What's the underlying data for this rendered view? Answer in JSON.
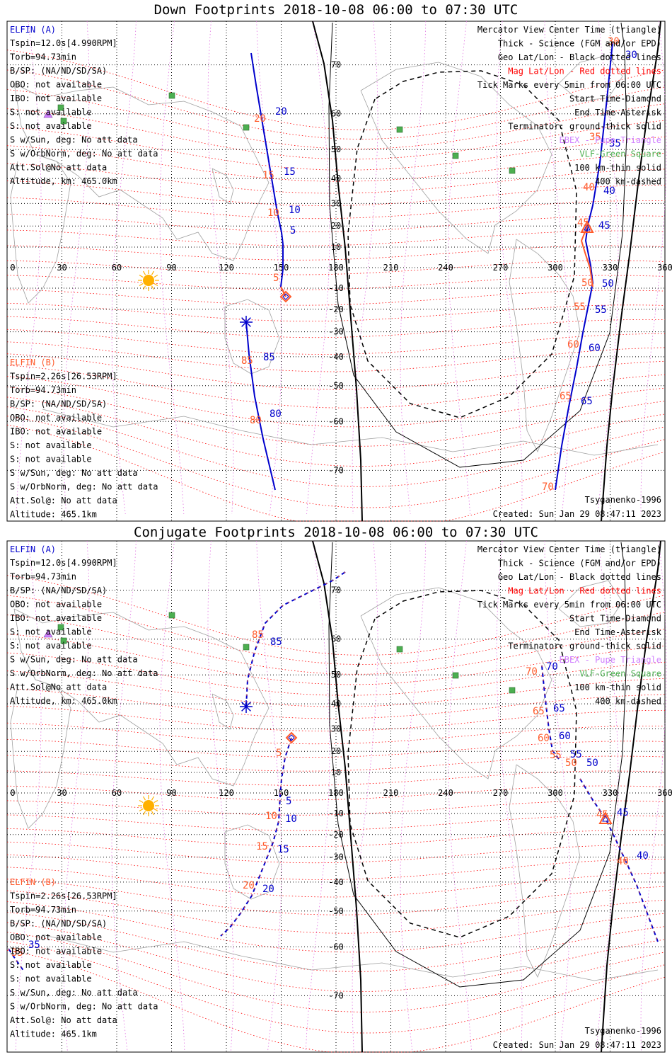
{
  "colors": {
    "elfin_a": "#0000cc",
    "elfin_b": "#ff5a2a",
    "mag_grid": "#ff0000",
    "geo_grid": "#000000",
    "ebex": "#d080ff",
    "vlf": "#4caf50",
    "sun": "#ffb000"
  },
  "axes": {
    "lon_ticks": [
      "0",
      "30",
      "60",
      "90",
      "120",
      "150",
      "180",
      "210",
      "240",
      "270",
      "300",
      "330",
      "360"
    ],
    "lat_ticks": [
      "70",
      "60",
      "50",
      "40",
      "30",
      "20",
      "10",
      "0",
      "-10",
      "-20",
      "-30",
      "-40",
      "-50",
      "-60",
      "-70"
    ]
  },
  "legend": {
    "view": "Mercator View Center Time (triangle)",
    "thick": "Thick - Science (FGM and/or EPD)",
    "geo": "Geo Lat/Lon - Black dotted lines",
    "mag": "Mag Lat/Lon - Red dotted lines",
    "ticks": "Tick Marks every 5min from 06:00 UTC",
    "start": "Start Time-Diamond",
    "end": "End Time-Asterisk",
    "terminator": "Terminator: ground-thick solid",
    "ebex": "EBEX - Pupe Triangle",
    "vlf": "VLF-Green Square",
    "km100": "100 km-thin solid",
    "km400": "400 km-dashed",
    "model": "Tsyganenko-1996",
    "created": "Created: Sun Jan 29 08:47:11 2023"
  },
  "sc_a": {
    "name": "ELFIN (A)",
    "lines": [
      "Tspin=12.0s[4.990RPM]",
      "Torb=94.73min",
      "B/SP: (NA/ND/SD/SA)",
      "OBO: not available",
      "IBO: not available",
      "S: not available",
      "S: not available",
      "S w/Sun, deg: No att data",
      "S w/OrbNorm, deg: No att data",
      "Att.Sol@No att data",
      "Altitude, km: 465.0km"
    ]
  },
  "sc_b": {
    "name": "ELFIN (B)",
    "lines": [
      "Tspin=2.26s[26.53RPM]",
      "Torb=94.73min",
      "B/SP: (NA/ND/SD/SA)",
      "OBO: not available",
      "IBO: not available",
      "S: not available",
      "S: not available",
      "S w/Sun, deg: No att data",
      "S w/OrbNorm, deg: No att data",
      "Att.Sol@: No att data",
      "Altitude: 465.1km"
    ]
  },
  "panels": [
    {
      "id": "down",
      "title": "Down Footprints 2018-10-08 06:00 to 07:30 UTC",
      "track_style": "solid",
      "tracks": [
        {
          "color_key": "elfin_a",
          "points": [
            [
              355,
              75
            ],
            [
              362,
              120
            ],
            [
              372,
              180
            ],
            [
              382,
              240
            ],
            [
              392,
              300
            ],
            [
              398,
              328
            ],
            [
              400,
              345
            ],
            [
              400,
              380
            ],
            [
              397,
              405
            ],
            [
              404,
              419
            ]
          ]
        },
        {
          "color_key": "elfin_b",
          "points": [
            [
              397,
              405
            ],
            [
              404,
              419
            ]
          ]
        },
        {
          "color_key": "elfin_a",
          "points": [
            [
              348,
              455
            ],
            [
              352,
              500
            ],
            [
              360,
              560
            ],
            [
              372,
              620
            ],
            [
              389,
              692
            ]
          ]
        },
        {
          "color_key": "elfin_a",
          "points": [
            [
              866,
              60
            ],
            [
              858,
              140
            ],
            [
              848,
              230
            ],
            [
              838,
              290
            ],
            [
              831,
              318
            ],
            [
              828,
              340
            ],
            [
              835,
              375
            ],
            [
              838,
              400
            ],
            [
              832,
              430
            ],
            [
              824,
              470
            ],
            [
              815,
              520
            ],
            [
              804,
              575
            ],
            [
              794,
              630
            ],
            [
              785,
              692
            ]
          ]
        },
        {
          "color_key": "elfin_b",
          "points": [
            [
              831,
              318
            ],
            [
              822,
              340
            ],
            [
              828,
              360
            ],
            [
              834,
              378
            ],
            [
              838,
              405
            ]
          ]
        }
      ],
      "start_marker": [
        404,
        419
      ],
      "end_marker": [
        348,
        455
      ],
      "center_marker": [
        830,
        322
      ],
      "tick_labels": [
        {
          "text": "20",
          "color_key": "elfin_a",
          "at": [
            389,
            162
          ]
        },
        {
          "text": "20",
          "color_key": "elfin_b",
          "at": [
            359,
            172
          ]
        },
        {
          "text": "15",
          "color_key": "elfin_a",
          "at": [
            401,
            247
          ]
        },
        {
          "text": "15",
          "color_key": "elfin_b",
          "at": [
            371,
            252
          ]
        },
        {
          "text": "10",
          "color_key": "elfin_a",
          "at": [
            408,
            301
          ]
        },
        {
          "text": "10",
          "color_key": "elfin_b",
          "at": [
            378,
            305
          ]
        },
        {
          "text": "5",
          "color_key": "elfin_a",
          "at": [
            410,
            330
          ]
        },
        {
          "text": "5",
          "color_key": "elfin_b",
          "at": [
            386,
            397
          ]
        },
        {
          "text": "85",
          "color_key": "elfin_a",
          "at": [
            372,
            509
          ]
        },
        {
          "text": "85",
          "color_key": "elfin_b",
          "at": [
            341,
            514
          ]
        },
        {
          "text": "80",
          "color_key": "elfin_a",
          "at": [
            381,
            589
          ]
        },
        {
          "text": "80",
          "color_key": "elfin_b",
          "at": [
            353,
            598
          ]
        },
        {
          "text": "30",
          "color_key": "elfin_a",
          "at": [
            884,
            82
          ]
        },
        {
          "text": "30",
          "color_key": "elfin_b",
          "at": [
            859,
            63
          ]
        },
        {
          "text": "35",
          "color_key": "elfin_a",
          "at": [
            861,
            207
          ]
        },
        {
          "text": "35",
          "color_key": "elfin_b",
          "at": [
            833,
            198
          ]
        },
        {
          "text": "40",
          "color_key": "elfin_a",
          "at": [
            853,
            274
          ]
        },
        {
          "text": "40",
          "color_key": "elfin_b",
          "at": [
            824,
            269
          ]
        },
        {
          "text": "45",
          "color_key": "elfin_a",
          "at": [
            846,
            323
          ]
        },
        {
          "text": "45",
          "color_key": "elfin_b",
          "at": [
            816,
            319
          ]
        },
        {
          "text": "50",
          "color_key": "elfin_a",
          "at": [
            851,
            405
          ]
        },
        {
          "text": "50",
          "color_key": "elfin_b",
          "at": [
            822,
            404
          ]
        },
        {
          "text": "55",
          "color_key": "elfin_a",
          "at": [
            841,
            442
          ]
        },
        {
          "text": "55",
          "color_key": "elfin_b",
          "at": [
            811,
            438
          ]
        },
        {
          "text": "60",
          "color_key": "elfin_a",
          "at": [
            832,
            496
          ]
        },
        {
          "text": "60",
          "color_key": "elfin_b",
          "at": [
            802,
            491
          ]
        },
        {
          "text": "65",
          "color_key": "elfin_a",
          "at": [
            821,
            571
          ]
        },
        {
          "text": "65",
          "color_key": "elfin_b",
          "at": [
            791,
            564
          ]
        },
        {
          "text": "70",
          "color_key": "elfin_b",
          "at": [
            766,
            692
          ]
        }
      ]
    },
    {
      "id": "conjugate",
      "title": "Conjugate Footprints 2018-10-08 06:00 to 07:30 UTC",
      "track_style": "dashed",
      "tracks": [
        {
          "color_key": "elfin_a",
          "points": [
            [
              488,
              808
            ],
            [
              470,
              820
            ],
            [
              430,
              840
            ],
            [
              400,
              855
            ],
            [
              375,
              880
            ],
            [
              360,
              920
            ],
            [
              350,
              960
            ],
            [
              348,
              998
            ]
          ]
        },
        {
          "color_key": "elfin_a",
          "points": [
            [
              412,
              1042
            ],
            [
              403,
              1070
            ],
            [
              398,
              1100
            ],
            [
              396,
              1125
            ],
            [
              394,
              1160
            ],
            [
              386,
              1190
            ],
            [
              376,
              1215
            ],
            [
              366,
              1240
            ],
            [
              356,
              1265
            ],
            [
              340,
              1290
            ],
            [
              325,
              1310
            ],
            [
              312,
              1322
            ]
          ]
        },
        {
          "color_key": "elfin_a",
          "points": [
            [
              766,
              940
            ],
            [
              770,
              980
            ],
            [
              776,
              1030
            ],
            [
              781,
              1060
            ],
            [
              790,
              1072
            ]
          ]
        },
        {
          "color_key": "elfin_a",
          "points": [
            [
              820,
              1100
            ],
            [
              838,
              1130
            ],
            [
              856,
              1156
            ],
            [
              870,
              1185
            ],
            [
              884,
              1215
            ],
            [
              900,
              1250
            ],
            [
              915,
              1290
            ],
            [
              930,
              1330
            ]
          ]
        },
        {
          "color_key": "elfin_a",
          "points": [
            [
              12,
              1340
            ],
            [
              22,
              1355
            ],
            [
              34,
              1372
            ]
          ]
        }
      ],
      "start_marker": [
        412,
        1042
      ],
      "end_marker": [
        348,
        998
      ],
      "center_marker": [
        856,
        1157
      ],
      "tick_labels": [
        {
          "text": "85",
          "color_key": "elfin_a",
          "at": [
            382,
            911
          ]
        },
        {
          "text": "85",
          "color_key": "elfin_b",
          "at": [
            356,
            901
          ]
        },
        {
          "text": "5",
          "color_key": "elfin_b",
          "at": [
            390,
            1068
          ]
        },
        {
          "text": "5",
          "color_key": "elfin_a",
          "at": [
            404,
            1136
          ]
        },
        {
          "text": "10",
          "color_key": "elfin_a",
          "at": [
            403,
            1161
          ]
        },
        {
          "text": "10",
          "color_key": "elfin_b",
          "at": [
            375,
            1157
          ]
        },
        {
          "text": "15",
          "color_key": "elfin_a",
          "at": [
            392,
            1204
          ]
        },
        {
          "text": "15",
          "color_key": "elfin_b",
          "at": [
            362,
            1200
          ]
        },
        {
          "text": "20",
          "color_key": "elfin_a",
          "at": [
            371,
            1260
          ]
        },
        {
          "text": "20",
          "color_key": "elfin_b",
          "at": [
            343,
            1255
          ]
        },
        {
          "text": "70",
          "color_key": "elfin_a",
          "at": [
            772,
            946
          ]
        },
        {
          "text": "70",
          "color_key": "elfin_b",
          "at": [
            743,
            953
          ]
        },
        {
          "text": "65",
          "color_key": "elfin_a",
          "at": [
            782,
            1005
          ]
        },
        {
          "text": "65",
          "color_key": "elfin_b",
          "at": [
            753,
            1009
          ]
        },
        {
          "text": "60",
          "color_key": "elfin_a",
          "at": [
            790,
            1044
          ]
        },
        {
          "text": "60",
          "color_key": "elfin_b",
          "at": [
            760,
            1047
          ]
        },
        {
          "text": "55",
          "color_key": "elfin_a",
          "at": [
            806,
            1070
          ]
        },
        {
          "text": "55",
          "color_key": "elfin_b",
          "at": [
            777,
            1071
          ]
        },
        {
          "text": "50",
          "color_key": "elfin_a",
          "at": [
            829,
            1082
          ]
        },
        {
          "text": "50",
          "color_key": "elfin_b",
          "at": [
            799,
            1082
          ]
        },
        {
          "text": "45",
          "color_key": "elfin_a",
          "at": [
            872,
            1152
          ]
        },
        {
          "text": "45",
          "color_key": "elfin_b",
          "at": [
            843,
            1155
          ]
        },
        {
          "text": "40",
          "color_key": "elfin_a",
          "at": [
            900,
            1213
          ]
        },
        {
          "text": "40",
          "color_key": "elfin_b",
          "at": [
            872,
            1221
          ]
        },
        {
          "text": "35",
          "color_key": "elfin_a",
          "at": [
            40,
            1339
          ]
        },
        {
          "text": "35",
          "color_key": "elfin_b",
          "at": [
            16,
            1350
          ]
        }
      ]
    }
  ]
}
